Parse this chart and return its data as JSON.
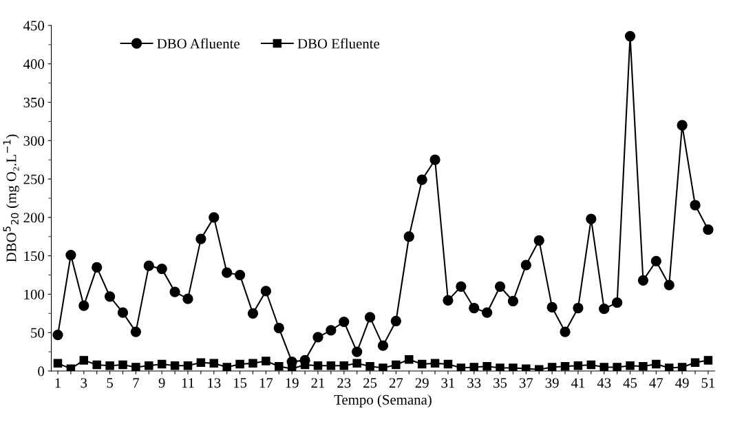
{
  "chart_data": {
    "type": "line",
    "xlabel": "Tempo (Semana)",
    "ylabel": "DBO$^{5}$$_{20}$ (mg O₂.L$^{−1}$)",
    "categories": [
      "1",
      null,
      "3",
      null,
      "5",
      null,
      "7",
      null,
      "9",
      null,
      "11",
      null,
      "13",
      null,
      "15",
      null,
      "17",
      null,
      "19",
      null,
      "21",
      null,
      "23",
      null,
      "25",
      null,
      "27",
      null,
      "29",
      null,
      "31",
      null,
      "33",
      null,
      "35",
      null,
      "37",
      null,
      "39",
      null,
      "41",
      null,
      "43",
      null,
      "45",
      null,
      "47",
      null,
      "49",
      null,
      "51"
    ],
    "series": [
      {
        "name": "DBO Afluente",
        "color": "#000000",
        "marker": "circle",
        "values": [
          47,
          151,
          85,
          135,
          97,
          76,
          51,
          137,
          133,
          103,
          94,
          172,
          200,
          128,
          125,
          75,
          104,
          56,
          12,
          14,
          44,
          53,
          64,
          25,
          70,
          33,
          65,
          175,
          249,
          275,
          92,
          110,
          82,
          76,
          110,
          91,
          138,
          170,
          83,
          51,
          82,
          198,
          81,
          89,
          436,
          118,
          143,
          112,
          320,
          216,
          184
        ]
      },
      {
        "name": "DBO Efluente",
        "color": "#000000",
        "marker": "square",
        "values": [
          10,
          3,
          14,
          8,
          7,
          8,
          5,
          7,
          9,
          7,
          7,
          11,
          10,
          5,
          9,
          10,
          13,
          6,
          3,
          8,
          7,
          7,
          7,
          10,
          6,
          4,
          8,
          15,
          9,
          10,
          9,
          4,
          5,
          6,
          4,
          4,
          3,
          2,
          5,
          6,
          7,
          8,
          5,
          5,
          7,
          6,
          9,
          4,
          5,
          11,
          14
        ]
      }
    ],
    "ylim": [
      0,
      450
    ],
    "yticks": [
      0,
      50,
      100,
      150,
      200,
      250,
      300,
      350,
      400,
      450
    ],
    "grid": false,
    "legend": "top",
    "line_style": "solid"
  }
}
